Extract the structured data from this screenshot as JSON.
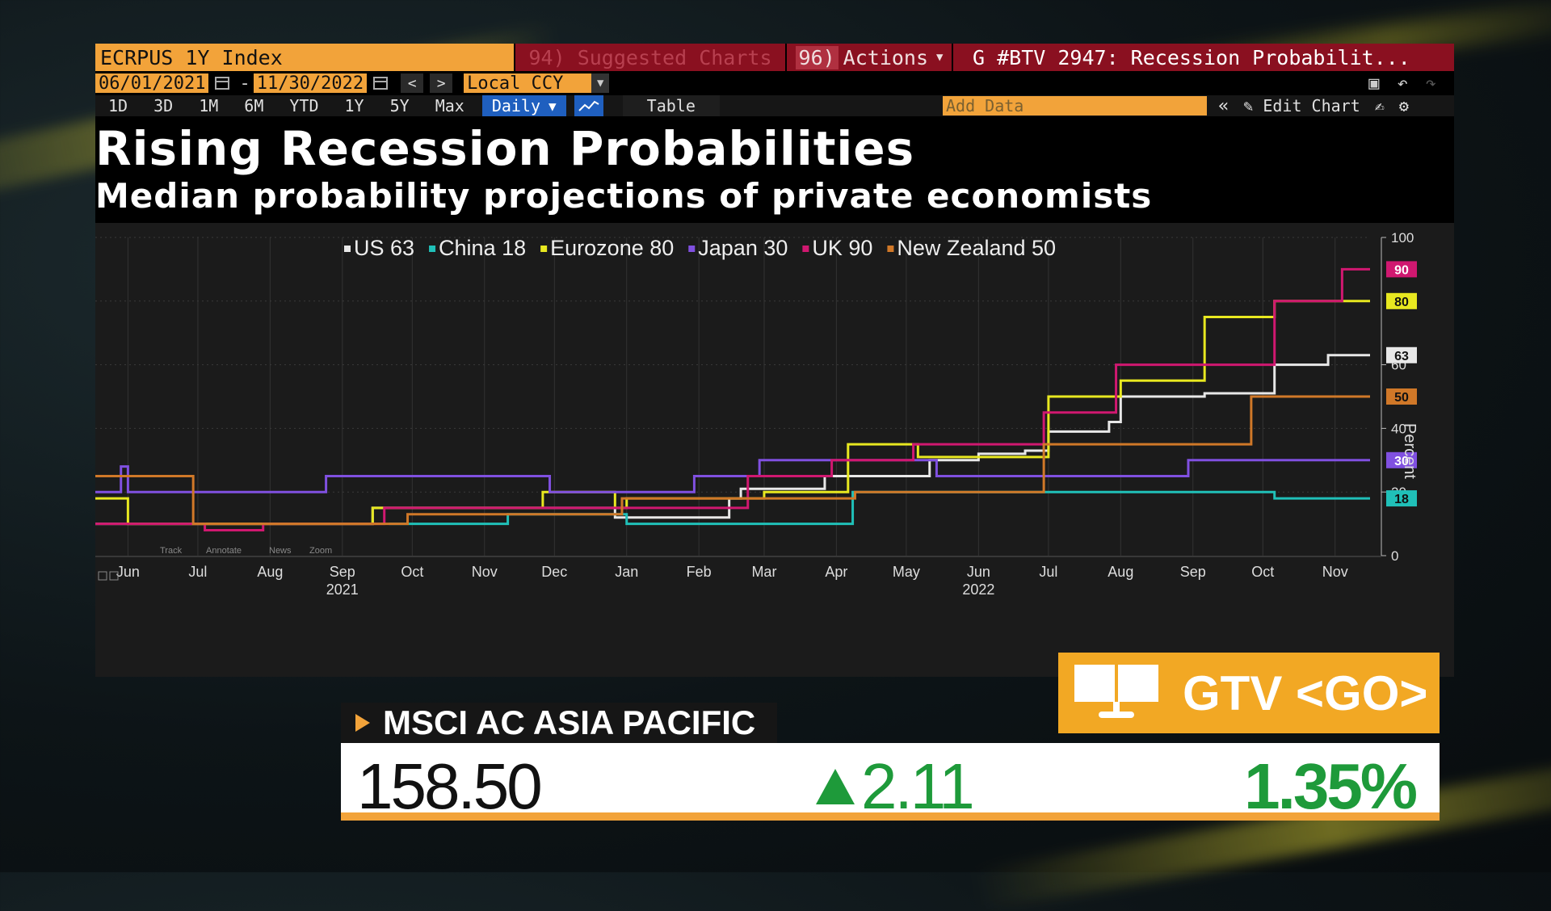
{
  "toolbar": {
    "ticker": "ECRPUS 1Y Index",
    "suggested_label": "94) Suggested Charts",
    "actions_num": "96)",
    "actions_label": "Actions",
    "story_label": "G #BTV 2947: Recession Probabilit...",
    "date_start": "06/01/2021",
    "date_end": "11/30/2022",
    "currency": "Local CCY",
    "periods": [
      "1D",
      "3D",
      "1M",
      "6M",
      "YTD",
      "1Y",
      "5Y",
      "Max"
    ],
    "frequency": "Daily",
    "table_label": "Table",
    "add_data_placeholder": "Add Data",
    "edit_chart_label": "Edit Chart"
  },
  "colors": {
    "US": "#e8e8e8",
    "China": "#20c0b8",
    "Eurozone": "#e8e820",
    "Japan": "#8050e0",
    "UK": "#d01870",
    "NewZealand": "#d07828",
    "accent": "#f2a33a",
    "up": "#1e9a3a"
  },
  "chart_data": {
    "type": "line",
    "title": "Rising Recession Probabilities",
    "subtitle": "Median probability projections of private economists",
    "ylabel": "Percent",
    "ylim": [
      0,
      100
    ],
    "yticks": [
      0,
      20,
      40,
      60,
      100
    ],
    "x_range": [
      "2021-06-01",
      "2022-11-30"
    ],
    "x_ticks": [
      {
        "label": "Jun",
        "date": "2021-06-15"
      },
      {
        "label": "Jul",
        "date": "2021-07-15"
      },
      {
        "label": "Aug",
        "date": "2021-08-15"
      },
      {
        "label": "Sep",
        "date": "2021-09-15"
      },
      {
        "label": "Oct",
        "date": "2021-10-15"
      },
      {
        "label": "Nov",
        "date": "2021-11-15"
      },
      {
        "label": "Dec",
        "date": "2021-12-15"
      },
      {
        "label": "Jan",
        "date": "2022-01-15"
      },
      {
        "label": "Feb",
        "date": "2022-02-15"
      },
      {
        "label": "Mar",
        "date": "2022-03-15"
      },
      {
        "label": "Apr",
        "date": "2022-04-15"
      },
      {
        "label": "May",
        "date": "2022-05-15"
      },
      {
        "label": "Jun",
        "date": "2022-06-15"
      },
      {
        "label": "Jul",
        "date": "2022-07-15"
      },
      {
        "label": "Aug",
        "date": "2022-08-15"
      },
      {
        "label": "Sep",
        "date": "2022-09-15"
      },
      {
        "label": "Oct",
        "date": "2022-10-15"
      },
      {
        "label": "Nov",
        "date": "2022-11-15"
      }
    ],
    "year_labels": [
      {
        "label": "2021",
        "date": "2021-09-15"
      },
      {
        "label": "2022",
        "date": "2022-06-15"
      }
    ],
    "legend_position": "top",
    "legend": [
      "US 63",
      "China 18",
      "Eurozone 80",
      "Japan 30",
      "UK 90",
      "New Zealand 50"
    ],
    "series": [
      {
        "name": "US",
        "color": "#e8e8e8",
        "last": 63,
        "points": [
          [
            "2021-06-01",
            10
          ],
          [
            "2021-09-25",
            10
          ],
          [
            "2021-09-28",
            15
          ],
          [
            "2021-10-10",
            15
          ],
          [
            "2021-11-15",
            15
          ],
          [
            "2021-12-10",
            15
          ],
          [
            "2022-01-10",
            12
          ],
          [
            "2022-02-28",
            18
          ],
          [
            "2022-03-05",
            21
          ],
          [
            "2022-04-05",
            21
          ],
          [
            "2022-04-10",
            25
          ],
          [
            "2022-05-20",
            25
          ],
          [
            "2022-05-25",
            30
          ],
          [
            "2022-06-15",
            32
          ],
          [
            "2022-07-05",
            33
          ],
          [
            "2022-07-15",
            39
          ],
          [
            "2022-08-10",
            42
          ],
          [
            "2022-08-15",
            50
          ],
          [
            "2022-09-15",
            50
          ],
          [
            "2022-09-20",
            51
          ],
          [
            "2022-10-15",
            51
          ],
          [
            "2022-10-20",
            60
          ],
          [
            "2022-11-10",
            60
          ],
          [
            "2022-11-12",
            63
          ],
          [
            "2022-11-30",
            63
          ]
        ]
      },
      {
        "name": "China",
        "color": "#20c0b8",
        "last": 18,
        "points": [
          [
            "2021-10-05",
            10
          ],
          [
            "2021-11-20",
            10
          ],
          [
            "2021-11-25",
            13
          ],
          [
            "2022-01-05",
            13
          ],
          [
            "2022-01-15",
            10
          ],
          [
            "2022-04-20",
            10
          ],
          [
            "2022-04-22",
            20
          ],
          [
            "2022-07-15",
            20
          ],
          [
            "2022-10-15",
            20
          ],
          [
            "2022-10-20",
            18
          ],
          [
            "2022-11-30",
            18
          ]
        ]
      },
      {
        "name": "Eurozone",
        "color": "#e8e820",
        "last": 80,
        "points": [
          [
            "2021-06-01",
            18
          ],
          [
            "2021-06-12",
            18
          ],
          [
            "2021-06-15",
            10
          ],
          [
            "2021-09-25",
            10
          ],
          [
            "2021-09-28",
            15
          ],
          [
            "2021-10-10",
            15
          ],
          [
            "2021-12-05",
            15
          ],
          [
            "2021-12-10",
            20
          ],
          [
            "2022-01-05",
            20
          ],
          [
            "2022-01-10",
            15
          ],
          [
            "2022-01-15",
            18
          ],
          [
            "2022-03-10",
            18
          ],
          [
            "2022-03-15",
            20
          ],
          [
            "2022-04-15",
            20
          ],
          [
            "2022-04-20",
            35
          ],
          [
            "2022-05-15",
            35
          ],
          [
            "2022-05-20",
            31
          ],
          [
            "2022-07-10",
            31
          ],
          [
            "2022-07-15",
            50
          ],
          [
            "2022-08-10",
            50
          ],
          [
            "2022-08-15",
            55
          ],
          [
            "2022-09-15",
            55
          ],
          [
            "2022-09-20",
            75
          ],
          [
            "2022-10-15",
            75
          ],
          [
            "2022-10-20",
            80
          ],
          [
            "2022-11-30",
            80
          ]
        ]
      },
      {
        "name": "Japan",
        "color": "#8050e0",
        "last": 30,
        "points": [
          [
            "2021-06-01",
            20
          ],
          [
            "2021-06-10",
            20
          ],
          [
            "2021-06-12",
            28
          ],
          [
            "2021-06-15",
            20
          ],
          [
            "2021-09-05",
            20
          ],
          [
            "2021-09-08",
            25
          ],
          [
            "2021-12-10",
            25
          ],
          [
            "2021-12-13",
            20
          ],
          [
            "2022-02-10",
            20
          ],
          [
            "2022-02-13",
            25
          ],
          [
            "2022-03-10",
            25
          ],
          [
            "2022-03-13",
            30
          ],
          [
            "2022-05-25",
            30
          ],
          [
            "2022-05-28",
            25
          ],
          [
            "2022-09-10",
            25
          ],
          [
            "2022-09-13",
            30
          ],
          [
            "2022-11-30",
            30
          ]
        ]
      },
      {
        "name": "UK",
        "color": "#d01870",
        "last": 90,
        "points": [
          [
            "2021-06-01",
            10
          ],
          [
            "2021-07-15",
            10
          ],
          [
            "2021-07-18",
            8
          ],
          [
            "2021-08-10",
            8
          ],
          [
            "2021-08-12",
            10
          ],
          [
            "2021-09-30",
            10
          ],
          [
            "2021-10-03",
            15
          ],
          [
            "2022-03-05",
            15
          ],
          [
            "2022-03-08",
            25
          ],
          [
            "2022-04-10",
            25
          ],
          [
            "2022-04-13",
            30
          ],
          [
            "2022-05-15",
            30
          ],
          [
            "2022-05-18",
            35
          ],
          [
            "2022-07-10",
            35
          ],
          [
            "2022-07-13",
            45
          ],
          [
            "2022-08-10",
            45
          ],
          [
            "2022-08-13",
            60
          ],
          [
            "2022-10-15",
            60
          ],
          [
            "2022-10-20",
            80
          ],
          [
            "2022-11-15",
            80
          ],
          [
            "2022-11-18",
            90
          ],
          [
            "2022-11-30",
            90
          ]
        ]
      },
      {
        "name": "New Zealand",
        "color": "#d07828",
        "last": 50,
        "points": [
          [
            "2021-06-01",
            25
          ],
          [
            "2021-07-10",
            25
          ],
          [
            "2021-07-13",
            10
          ],
          [
            "2021-10-10",
            10
          ],
          [
            "2021-10-13",
            13
          ],
          [
            "2022-01-10",
            13
          ],
          [
            "2022-01-13",
            18
          ],
          [
            "2022-04-20",
            18
          ],
          [
            "2022-04-23",
            20
          ],
          [
            "2022-07-10",
            20
          ],
          [
            "2022-07-13",
            35
          ],
          [
            "2022-10-05",
            35
          ],
          [
            "2022-10-10",
            50
          ],
          [
            "2022-11-30",
            50
          ]
        ]
      }
    ]
  },
  "plot_toolbar": [
    "Track",
    "Annotate",
    "News",
    "Zoom"
  ],
  "ticker": {
    "index_name": "MSCI AC ASIA PACIFIC",
    "value": "158.50",
    "change": "2.11",
    "pct": "1.35%"
  },
  "badge": {
    "label": "GTV <GO>",
    "icon": "monitor-icon"
  }
}
